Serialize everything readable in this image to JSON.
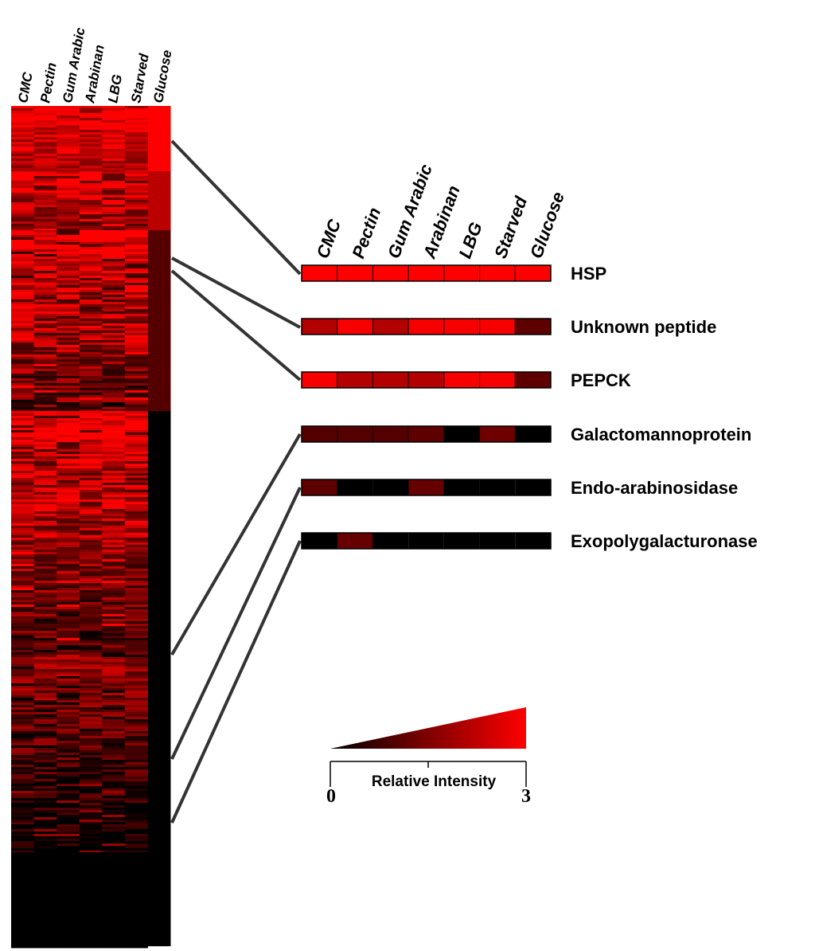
{
  "chart_data": [
    {
      "type": "heatmap",
      "title": "",
      "columns": [
        "CMC",
        "Pectin",
        "Gum Arabic",
        "Arabinan",
        "LBG",
        "Starved",
        "Glucose"
      ],
      "rows_note": "",
      "color_scale": {
        "min": 0,
        "max": 3,
        "low_color": "#000000",
        "high_color": "#ff0000"
      },
      "clusters": [
        {
          "rows": "top",
          "glucose_level": 3.0,
          "other_level_range": [
            1.6,
            3.0
          ]
        },
        {
          "rows": "upper-middle",
          "glucose_level": 2.2,
          "other_level_range": [
            1.0,
            3.0
          ]
        },
        {
          "rows": "middle",
          "glucose_level": 1.0,
          "other_level_range": [
            0.6,
            3.0
          ]
        },
        {
          "rows": "lower-middle",
          "glucose_level": 0.0,
          "other_level_range": [
            0.8,
            3.0
          ]
        },
        {
          "rows": "lower",
          "glucose_level": 0.0,
          "other_level_range": [
            0.0,
            1.8
          ]
        },
        {
          "rows": "bottom",
          "glucose_level": 0.0,
          "other_level_range": [
            0.0,
            0.0
          ]
        }
      ]
    },
    {
      "type": "heatmap",
      "columns": [
        "CMC",
        "Pectin",
        "Gum Arabic",
        "Arabinan",
        "LBG",
        "Starved",
        "Glucose"
      ],
      "rows": [
        {
          "name": "HSP",
          "values": [
            3.0,
            3.0,
            3.0,
            3.0,
            3.0,
            3.0,
            3.0
          ]
        },
        {
          "name": "Unknown peptide",
          "values": [
            2.1,
            2.9,
            2.1,
            2.9,
            2.9,
            2.9,
            1.1
          ]
        },
        {
          "name": "PEPCK",
          "values": [
            2.9,
            2.1,
            2.1,
            2.1,
            2.9,
            2.9,
            1.1
          ]
        },
        {
          "name": "Galactomannoprotein",
          "values": [
            1.0,
            1.0,
            1.0,
            1.1,
            0.0,
            1.3,
            0.0
          ]
        },
        {
          "name": "Endo-arabinosidase",
          "values": [
            1.1,
            0.0,
            0.0,
            1.2,
            0.0,
            0.0,
            0.0
          ]
        },
        {
          "name": "Exopolygalacturonase",
          "values": [
            0.0,
            1.2,
            0.0,
            0.0,
            0.0,
            0.0,
            0.0
          ]
        }
      ]
    }
  ],
  "legend": {
    "label": "Relative Intensity",
    "min_label": "0",
    "max_label": "3",
    "low_color": "#000000",
    "high_color": "#ff0000"
  }
}
